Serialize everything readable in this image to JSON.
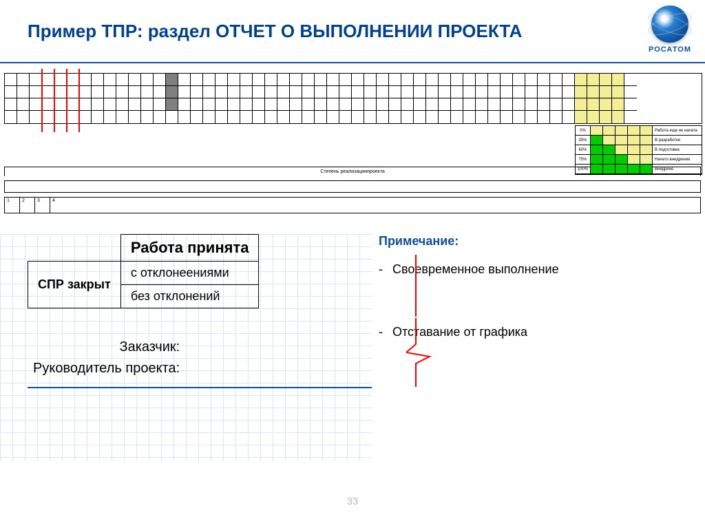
{
  "title": "Пример ТПР: раздел ОТЧЕТ О ВЫПОЛНЕНИИ ПРОЕКТА",
  "brand": "РОСАТОМ",
  "page_number": "33",
  "gantt": {
    "cols": 51,
    "rows": 4,
    "red_markers_col": [
      3,
      4,
      5,
      6
    ],
    "gray_block": {
      "col_start": 13,
      "col_span": 1,
      "row_start": 0,
      "row_span": 3
    },
    "yellow_block": {
      "col_start": 46,
      "col_span": 4,
      "row_start": 0,
      "row_span": 4
    },
    "colors": {
      "red": "#ff0000",
      "gray": "#808080",
      "yellow": "#f2ef97",
      "green": "#00cc00"
    }
  },
  "legend": {
    "rows": [
      {
        "pct": "0%",
        "green_cells": 0,
        "yellow_cells": 5,
        "label": "Работа еще не начата"
      },
      {
        "pct": "35%",
        "green_cells": 1,
        "yellow_cells": 4,
        "label": "В разработке"
      },
      {
        "pct": "60%",
        "green_cells": 2,
        "yellow_cells": 3,
        "label": "В подготовке"
      },
      {
        "pct": "75%",
        "green_cells": 3,
        "yellow_cells": 2,
        "label": "Начато внедрение"
      },
      {
        "pct": "100%",
        "green_cells": 5,
        "yellow_cells": 0,
        "label": "Внедрено"
      }
    ]
  },
  "degree_label": "Степень реализациипроекта",
  "num_cols": [
    "1",
    "2",
    "3",
    "4"
  ],
  "accept": {
    "header": "Работа принята",
    "row1_left": "СПР закрыт",
    "row1a": "с отклонеениями",
    "row1b": "без отклонений"
  },
  "signatures": {
    "customer": "Заказчик:",
    "manager": "Руководитель проекта:"
  },
  "notes": {
    "header": "Примечание:",
    "items": [
      "Своевременное выполнение",
      "Отставание от графика"
    ]
  }
}
